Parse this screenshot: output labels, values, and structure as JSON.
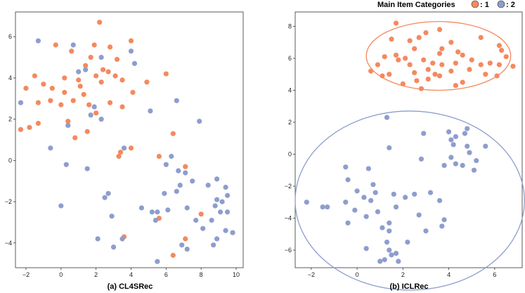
{
  "legend": {
    "title": "Main Item Categories",
    "entries": [
      {
        "label": ": 1",
        "color": "#f4895f"
      },
      {
        "label": ": 2",
        "color": "#8d9dce"
      }
    ]
  },
  "chart_data": [
    {
      "type": "scatter",
      "title": "(a) CL4SRec",
      "xlim": [
        -2.6,
        10.4
      ],
      "ylim": [
        -5.2,
        7.2
      ],
      "xticks": [
        -2,
        0,
        2,
        4,
        6,
        8,
        10
      ],
      "yticks": [
        -4,
        -2,
        0,
        2,
        4,
        6
      ],
      "series": [
        {
          "name": "1",
          "color": "#f4895f",
          "points": [
            [
              2.2,
              6.7
            ],
            [
              -0.3,
              5.6
            ],
            [
              1.9,
              5.6
            ],
            [
              0.6,
              5.3
            ],
            [
              2.8,
              5.5
            ],
            [
              3.2,
              4.9
            ],
            [
              4.0,
              5.8
            ],
            [
              1.7,
              5.0
            ],
            [
              2.4,
              4.4
            ],
            [
              1.4,
              4.6
            ],
            [
              -1.5,
              4.1
            ],
            [
              0.2,
              4.0
            ],
            [
              -1.0,
              3.7
            ],
            [
              -2.0,
              3.5
            ],
            [
              -0.5,
              3.5
            ],
            [
              1.0,
              3.9
            ],
            [
              2.0,
              4.1
            ],
            [
              2.3,
              3.8
            ],
            [
              2.7,
              4.3
            ],
            [
              3.1,
              4.1
            ],
            [
              3.5,
              3.9
            ],
            [
              1.1,
              3.6
            ],
            [
              0.2,
              3.3
            ],
            [
              1.3,
              3.2
            ],
            [
              2.8,
              2.8
            ],
            [
              1.6,
              2.7
            ],
            [
              4.1,
              3.3
            ],
            [
              4.9,
              3.8
            ],
            [
              6.0,
              4.2
            ],
            [
              -0.6,
              2.9
            ],
            [
              -1.3,
              2.8
            ],
            [
              0.0,
              2.7
            ],
            [
              0.7,
              2.9
            ],
            [
              2.0,
              2.3
            ],
            [
              3.5,
              2.6
            ],
            [
              -1.3,
              1.8
            ],
            [
              -1.8,
              1.6
            ],
            [
              -2.3,
              1.5
            ],
            [
              0.4,
              1.9
            ],
            [
              1.5,
              1.4
            ],
            [
              0.8,
              1.1
            ],
            [
              3.4,
              0.4
            ],
            [
              3.3,
              0.2
            ],
            [
              4.0,
              0.6
            ],
            [
              5.6,
              0.2
            ],
            [
              6.4,
              1.3
            ],
            [
              7.1,
              -0.3
            ],
            [
              8.0,
              -2.6
            ],
            [
              7.1,
              -3.8
            ],
            [
              3.6,
              -3.7
            ],
            [
              5.6,
              -2.8
            ],
            [
              6.4,
              -4.6
            ]
          ]
        },
        {
          "name": "2",
          "color": "#8d9dce",
          "points": [
            [
              -1.3,
              5.8
            ],
            [
              0.7,
              5.6
            ],
            [
              2.3,
              5.0
            ],
            [
              4.0,
              5.3
            ],
            [
              1.4,
              4.4
            ],
            [
              4.2,
              4.7
            ],
            [
              1.0,
              4.3
            ],
            [
              -2.3,
              2.8
            ],
            [
              1.7,
              2.2
            ],
            [
              1.9,
              2.6
            ],
            [
              2.3,
              2.0
            ],
            [
              5.1,
              2.4
            ],
            [
              6.6,
              2.9
            ],
            [
              7.9,
              1.9
            ],
            [
              0.4,
              1.7
            ],
            [
              -0.6,
              0.6
            ],
            [
              3.6,
              0.6
            ],
            [
              0.3,
              -0.2
            ],
            [
              1.5,
              -0.4
            ],
            [
              6.3,
              0.2
            ],
            [
              6.0,
              -0.2
            ],
            [
              6.7,
              -0.5
            ],
            [
              7.1,
              -0.6
            ],
            [
              8.9,
              -0.9
            ],
            [
              6.8,
              -1.2
            ],
            [
              7.5,
              -1.0
            ],
            [
              8.4,
              -1.2
            ],
            [
              9.4,
              -1.3
            ],
            [
              2.7,
              -1.6
            ],
            [
              2.5,
              -1.8
            ],
            [
              5.9,
              -1.6
            ],
            [
              6.6,
              -1.5
            ],
            [
              8.9,
              -1.9
            ],
            [
              9.5,
              -1.7
            ],
            [
              9.2,
              -2.0
            ],
            [
              2.9,
              -2.7
            ],
            [
              4.6,
              -2.3
            ],
            [
              0.0,
              -2.2
            ],
            [
              5.5,
              -2.5
            ],
            [
              5.4,
              -2.9
            ],
            [
              5.2,
              -2.5
            ],
            [
              6.1,
              -2.4
            ],
            [
              7.2,
              -2.3
            ],
            [
              8.8,
              -2.2
            ],
            [
              8.6,
              -2.9
            ],
            [
              9.1,
              -2.5
            ],
            [
              9.5,
              -2.5
            ],
            [
              7.7,
              -2.9
            ],
            [
              8.1,
              -3.3
            ],
            [
              9.4,
              -3.4
            ],
            [
              8.9,
              -3.8
            ],
            [
              8.7,
              -4.1
            ],
            [
              9.8,
              -3.5
            ],
            [
              7.2,
              -4.3
            ],
            [
              6.9,
              -4.1
            ],
            [
              5.5,
              -4.9
            ],
            [
              3.0,
              -4.2
            ],
            [
              2.1,
              -3.8
            ],
            [
              3.5,
              -3.8
            ]
          ]
        }
      ]
    },
    {
      "type": "scatter",
      "title": "(b) ICLRec",
      "xlim": [
        -2.7,
        7.2
      ],
      "ylim": [
        -7.1,
        8.9
      ],
      "xticks": [
        -2,
        0,
        2,
        4,
        6
      ],
      "yticks": [
        -6,
        -4,
        -2,
        0,
        2,
        4,
        6,
        8
      ],
      "ellipses": [
        {
          "color": "#f4895f",
          "cx": 3.55,
          "cy": 6.15,
          "rx": 3.15,
          "ry": 2.15
        },
        {
          "color": "#8d9dce",
          "cx": 2.3,
          "cy": -2.9,
          "rx": 5.0,
          "ry": 5.6
        }
      ],
      "series": [
        {
          "name": "1",
          "color": "#f4895f",
          "points": [
            [
              1.7,
              8.2
            ],
            [
              2.3,
              7.1
            ],
            [
              3.0,
              7.6
            ],
            [
              3.6,
              7.8
            ],
            [
              5.4,
              7.3
            ],
            [
              6.2,
              6.8
            ],
            [
              1.5,
              7.2
            ],
            [
              2.7,
              7.3
            ],
            [
              4.1,
              7.0
            ],
            [
              4.4,
              6.4
            ],
            [
              1.7,
              6.2
            ],
            [
              2.1,
              6.0
            ],
            [
              3.7,
              6.6
            ],
            [
              4.6,
              6.2
            ],
            [
              6.3,
              6.5
            ],
            [
              6.5,
              6.1
            ],
            [
              2.5,
              6.6
            ],
            [
              1.2,
              6.1
            ],
            [
              2.9,
              5.9
            ],
            [
              3.3,
              5.7
            ],
            [
              4.3,
              5.7
            ],
            [
              5.0,
              5.9
            ],
            [
              5.8,
              5.7
            ],
            [
              6.2,
              5.6
            ],
            [
              0.9,
              5.6
            ],
            [
              2.3,
              5.6
            ],
            [
              3.1,
              5.3
            ],
            [
              3.7,
              5.6
            ],
            [
              4.9,
              5.3
            ],
            [
              5.4,
              5.6
            ],
            [
              0.6,
              5.2
            ],
            [
              1.4,
              5.0
            ],
            [
              2.5,
              5.1
            ],
            [
              3.4,
              5.0
            ],
            [
              4.1,
              5.2
            ],
            [
              6.8,
              5.5
            ],
            [
              1.1,
              4.9
            ],
            [
              2.6,
              4.6
            ],
            [
              3.1,
              4.7
            ],
            [
              3.6,
              4.9
            ],
            [
              4.6,
              4.5
            ],
            [
              5.6,
              5.0
            ],
            [
              6.1,
              4.9
            ],
            [
              2.0,
              4.4
            ],
            [
              2.8,
              4.1
            ],
            [
              4.3,
              4.3
            ],
            [
              1.8,
              5.9
            ],
            [
              3.6,
              6.3
            ]
          ]
        },
        {
          "name": "2",
          "color": "#8d9dce",
          "points": [
            [
              -2.2,
              -3.0
            ],
            [
              -1.5,
              -3.3
            ],
            [
              -1.3,
              -3.3
            ],
            [
              -0.5,
              -0.8
            ],
            [
              -0.4,
              -1.6
            ],
            [
              -0.5,
              -3.0
            ],
            [
              -0.1,
              -3.5
            ],
            [
              -0.4,
              -4.3
            ],
            [
              0.0,
              -2.3
            ],
            [
              0.3,
              -2.7
            ],
            [
              0.4,
              -3.9
            ],
            [
              0.4,
              -5.9
            ],
            [
              0.6,
              -2.9
            ],
            [
              0.7,
              -1.9
            ],
            [
              0.8,
              -2.4
            ],
            [
              0.9,
              -3.6
            ],
            [
              1.1,
              -4.6
            ],
            [
              1.0,
              -6.7
            ],
            [
              1.2,
              -6.6
            ],
            [
              1.3,
              -5.5
            ],
            [
              1.4,
              -4.8
            ],
            [
              1.4,
              -4.3
            ],
            [
              1.4,
              -6.0
            ],
            [
              1.3,
              2.3
            ],
            [
              1.4,
              0.4
            ],
            [
              1.6,
              -2.5
            ],
            [
              1.7,
              -3.3
            ],
            [
              1.7,
              -6.2
            ],
            [
              1.8,
              -6.7
            ],
            [
              2.1,
              -2.7
            ],
            [
              2.2,
              -5.5
            ],
            [
              2.5,
              -2.5
            ],
            [
              2.7,
              -3.8
            ],
            [
              2.8,
              -0.3
            ],
            [
              2.9,
              1.3
            ],
            [
              3.0,
              -4.8
            ],
            [
              3.6,
              -2.9
            ],
            [
              3.7,
              -4.5
            ],
            [
              3.8,
              -4.1
            ],
            [
              3.8,
              -0.7
            ],
            [
              4.0,
              1.4
            ],
            [
              4.1,
              0.9
            ],
            [
              4.2,
              0.6
            ],
            [
              4.1,
              -0.2
            ],
            [
              4.3,
              -0.6
            ],
            [
              4.3,
              1.1
            ],
            [
              4.6,
              -0.7
            ],
            [
              4.7,
              1.3
            ],
            [
              4.8,
              1.6
            ],
            [
              4.9,
              0.1
            ],
            [
              4.8,
              0.5
            ],
            [
              5.1,
              -1.0
            ],
            [
              5.2,
              -0.4
            ],
            [
              5.6,
              0.5
            ],
            [
              1.5,
              -6.3
            ],
            [
              3.2,
              -2.4
            ],
            [
              0.5,
              -0.9
            ]
          ]
        }
      ]
    }
  ]
}
